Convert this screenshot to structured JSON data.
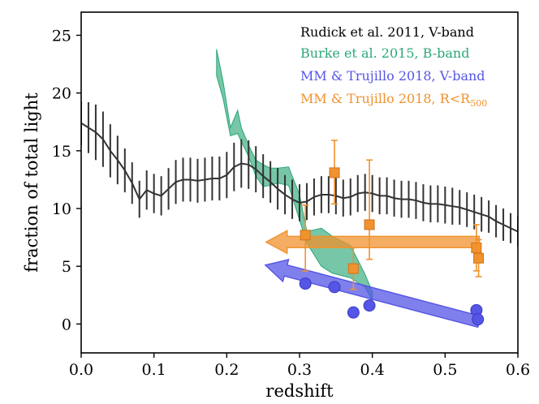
{
  "chart_data": {
    "type": "line",
    "xlabel": "redshift",
    "ylabel": "fraction of total light",
    "xlim": [
      0.0,
      0.6
    ],
    "ylim": [
      -2.5,
      27
    ],
    "xticks": [
      "0.0",
      "0.1",
      "0.2",
      "0.3",
      "0.4",
      "0.5",
      "0.6"
    ],
    "yticks": [
      "0",
      "5",
      "10",
      "15",
      "20",
      "25"
    ],
    "grid": false,
    "legend_position": "top-right",
    "legend": [
      {
        "label": "Rudick et al. 2011, V-band",
        "color": "#000000"
      },
      {
        "label": "Burke et al. 2015, B-band",
        "color": "#2ca878"
      },
      {
        "label": "MM & Trujillo 2018, V-band",
        "color": "#5555e6",
        "label_main": "MM & Trujillo 2018, V-band"
      },
      {
        "label": "MM & Trujillo 2018, R<R500",
        "color": "#f0922e",
        "label_main": "MM & Trujillo 2018, R<R",
        "label_sub": "500"
      }
    ],
    "series": [
      {
        "name": "Rudick et al. 2011, V-band",
        "style": "line-with-errorbars",
        "color": "#333333",
        "x": [
          0.0,
          0.01,
          0.02,
          0.03,
          0.04,
          0.05,
          0.06,
          0.07,
          0.08,
          0.09,
          0.1,
          0.11,
          0.12,
          0.13,
          0.14,
          0.15,
          0.16,
          0.17,
          0.18,
          0.19,
          0.2,
          0.21,
          0.22,
          0.23,
          0.24,
          0.25,
          0.26,
          0.27,
          0.28,
          0.29,
          0.3,
          0.31,
          0.32,
          0.33,
          0.34,
          0.35,
          0.36,
          0.37,
          0.38,
          0.39,
          0.4,
          0.41,
          0.42,
          0.43,
          0.44,
          0.45,
          0.46,
          0.47,
          0.48,
          0.49,
          0.5,
          0.51,
          0.52,
          0.53,
          0.54,
          0.55,
          0.56,
          0.57,
          0.58,
          0.59,
          0.6
        ],
        "y": [
          17.4,
          17.0,
          16.6,
          16.0,
          15.0,
          14.2,
          13.3,
          12.2,
          10.8,
          11.6,
          11.3,
          11.1,
          11.7,
          12.3,
          12.5,
          12.5,
          12.4,
          12.5,
          12.6,
          12.6,
          12.9,
          13.6,
          13.9,
          13.8,
          13.4,
          12.8,
          12.3,
          11.7,
          11.2,
          10.8,
          10.5,
          10.6,
          11.0,
          11.2,
          11.2,
          11.1,
          10.9,
          11.0,
          11.3,
          11.4,
          11.3,
          11.1,
          11.1,
          10.9,
          10.8,
          10.8,
          10.7,
          10.5,
          10.4,
          10.4,
          10.3,
          10.2,
          10.1,
          9.9,
          9.7,
          9.5,
          9.3,
          8.9,
          8.6,
          8.3,
          8.0
        ],
        "yerr": [
          1.9,
          2.2,
          2.4,
          2.4,
          2.3,
          2.1,
          1.9,
          1.8,
          1.6,
          1.7,
          1.7,
          1.7,
          1.8,
          1.9,
          1.9,
          1.9,
          1.9,
          1.9,
          1.9,
          1.9,
          2.0,
          2.1,
          2.1,
          2.1,
          2.0,
          1.9,
          1.8,
          1.8,
          1.7,
          1.7,
          1.6,
          1.6,
          1.6,
          1.6,
          1.6,
          1.6,
          1.6,
          1.6,
          1.6,
          1.6,
          1.6,
          1.6,
          1.6,
          1.6,
          1.6,
          1.6,
          1.6,
          1.6,
          1.6,
          1.6,
          1.6,
          1.6,
          1.5,
          1.5,
          1.5,
          1.5,
          1.4,
          1.4,
          1.4,
          1.3,
          1.3
        ]
      },
      {
        "name": "Burke et al. 2015, B-band",
        "style": "band",
        "color": "#2ca878",
        "x": [
          0.186,
          0.195,
          0.205,
          0.215,
          0.22,
          0.23,
          0.24,
          0.25,
          0.26,
          0.27,
          0.285,
          0.3,
          0.31,
          0.33,
          0.345,
          0.37,
          0.39,
          0.4
        ],
        "upper": [
          23.8,
          21.0,
          17.0,
          18.5,
          17.0,
          15.5,
          14.2,
          13.8,
          13.5,
          13.5,
          13.6,
          11.2,
          8.0,
          8.3,
          7.6,
          6.8,
          4.3,
          2.8
        ],
        "lower": [
          21.5,
          19.5,
          16.3,
          16.5,
          15.8,
          14.5,
          12.8,
          11.9,
          12.0,
          12.2,
          12.0,
          9.0,
          7.0,
          5.0,
          4.4,
          4.0,
          3.2,
          2.0
        ]
      },
      {
        "name": "MM & Trujillo 2018, V-band",
        "style": "scatter",
        "color": "#5555e6",
        "x": [
          0.308,
          0.348,
          0.374,
          0.396,
          0.543,
          0.545
        ],
        "y": [
          3.5,
          3.2,
          1.0,
          1.6,
          1.2,
          0.4
        ]
      },
      {
        "name": "MM & Trujillo 2018, R<R500",
        "style": "scatter-with-errorbars",
        "color": "#f0922e",
        "x": [
          0.308,
          0.348,
          0.374,
          0.396,
          0.543,
          0.546
        ],
        "y": [
          7.7,
          13.1,
          4.8,
          8.6,
          6.6,
          5.7
        ],
        "yerr_low": [
          3.1,
          2.7,
          1.8,
          3.0,
          2.0,
          1.6
        ],
        "yerr_high": [
          2.6,
          2.8,
          1.8,
          5.6,
          2.0,
          1.6
        ]
      }
    ],
    "annotations": [
      {
        "type": "arrow",
        "color": "#f0922e",
        "from": [
          0.547,
          7.1
        ],
        "to": [
          0.254,
          7.1
        ]
      },
      {
        "type": "arrow",
        "color": "#5555e6",
        "from": [
          0.547,
          0.2
        ],
        "to": [
          0.253,
          5.1
        ]
      }
    ]
  }
}
